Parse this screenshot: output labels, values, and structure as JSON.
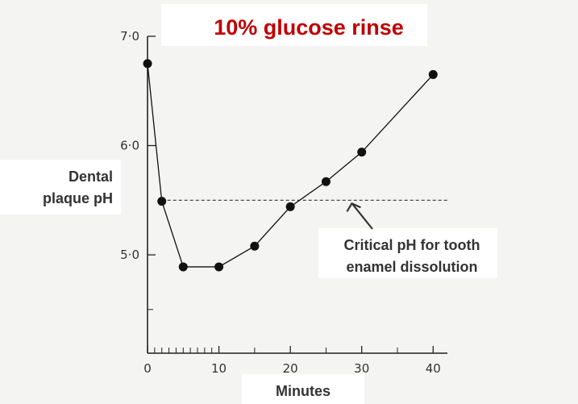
{
  "chart_data": {
    "type": "line",
    "title": "10% glucose rinse",
    "ylabel_lines": [
      "Dental",
      "plaque pH"
    ],
    "xlabel": "Minutes",
    "xlim": [
      0,
      42
    ],
    "ylim": [
      4.1,
      7.0
    ],
    "x_ticks": [
      0,
      10,
      20,
      30,
      40
    ],
    "x_tick_labels": [
      "0",
      "10",
      "20",
      "30",
      "40"
    ],
    "x_minor_ticks": [
      1,
      2,
      3,
      4,
      5,
      6,
      7,
      8,
      9,
      15,
      25,
      35
    ],
    "y_ticks": [
      5.0,
      6.0,
      7.0
    ],
    "y_tick_labels": [
      "5·0",
      "6·0",
      "7·0"
    ],
    "y_minor_ticks": [
      4.5
    ],
    "grid": false,
    "series": [
      {
        "x": [
          0,
          2,
          5,
          10,
          15,
          20,
          25,
          30,
          40
        ],
        "y": [
          6.75,
          5.49,
          4.89,
          4.89,
          5.08,
          5.44,
          5.67,
          5.94,
          6.65
        ]
      }
    ],
    "reference_line": {
      "y": 5.5,
      "x_range": [
        2,
        42
      ],
      "label_lines": [
        "Critical pH for tooth",
        "enamel dissolution"
      ],
      "arrow_to_x": 28.5
    },
    "colors": {
      "title": "#c00000",
      "line": "#111111",
      "text": "#333333"
    }
  }
}
